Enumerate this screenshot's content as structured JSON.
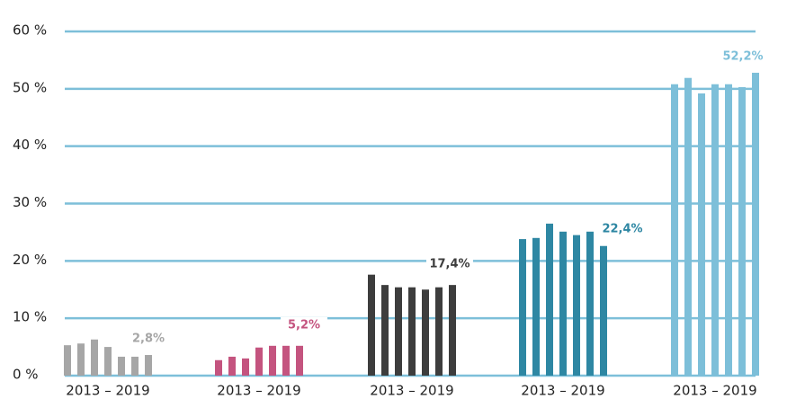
{
  "chart_data": {
    "type": "bar",
    "ylim": [
      0,
      60
    ],
    "yticks": [
      {
        "value": 0,
        "label": "0 %"
      },
      {
        "value": 10,
        "label": "10 %"
      },
      {
        "value": 20,
        "label": "20 %"
      },
      {
        "value": 30,
        "label": "30 %"
      },
      {
        "value": 40,
        "label": "40 %"
      },
      {
        "value": 50,
        "label": "50 %"
      },
      {
        "value": 60,
        "label": "60 %"
      }
    ],
    "grid": true,
    "groups": [
      {
        "label": "2013 – 2019",
        "color": "#a6a6a6",
        "annotation": "2,8%",
        "values": [
          5.3,
          5.6,
          6.3,
          5.0,
          3.3,
          3.3,
          3.6
        ]
      },
      {
        "label": "2013 – 2019",
        "color": "#c4547f",
        "annotation": "5,2%",
        "values": [
          2.7,
          3.3,
          3.0,
          4.9,
          5.2,
          5.2,
          5.2
        ]
      },
      {
        "label": "2013 – 2019",
        "color": "#3d3d3d",
        "annotation": "17,4%",
        "values": [
          17.6,
          15.8,
          15.4,
          15.4,
          15.0,
          15.4,
          15.8
        ]
      },
      {
        "label": "2013 – 2019",
        "color": "#2e87a3",
        "annotation": "22,4%",
        "values": [
          23.8,
          24.0,
          26.5,
          25.1,
          24.5,
          25.1,
          22.6
        ]
      },
      {
        "label": "2013 – 2019",
        "color": "#7dbfd9",
        "annotation": "52,2%",
        "values": [
          50.8,
          51.9,
          49.2,
          50.8,
          50.8,
          50.3,
          52.8
        ]
      }
    ]
  }
}
